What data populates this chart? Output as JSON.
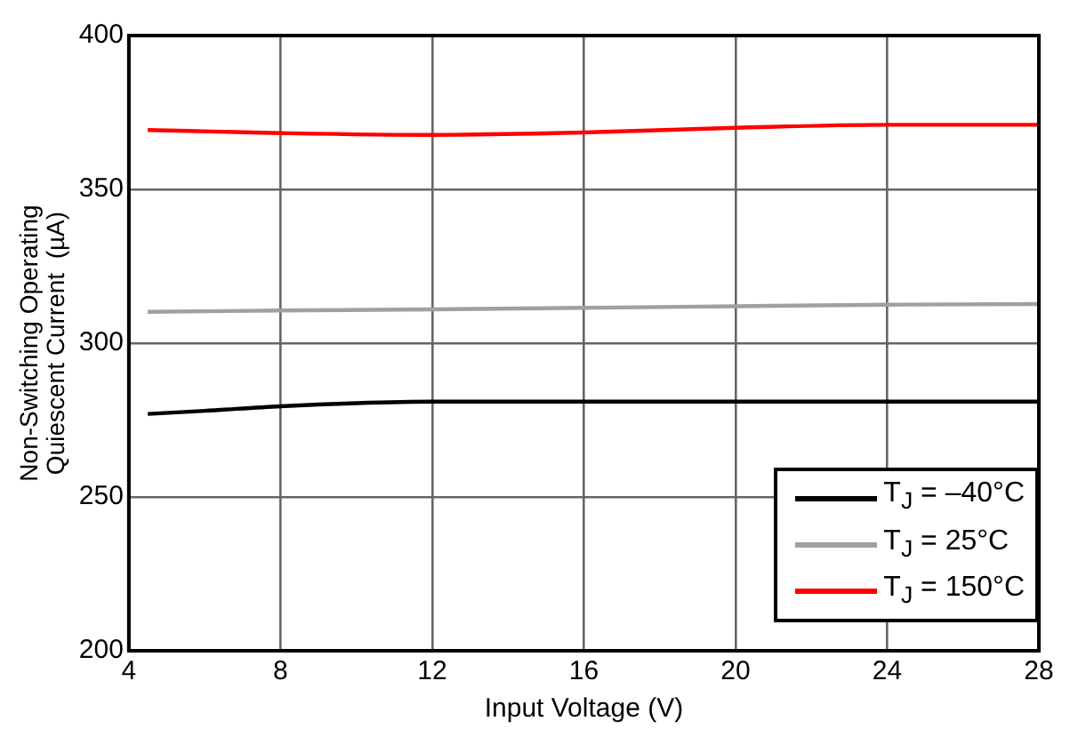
{
  "chart_data": {
    "type": "line",
    "xlabel": "Input Voltage (V)",
    "ylabel": "Non-Switching Operating\nQuiescent Current  (µA)",
    "xlim": [
      4,
      28
    ],
    "xticks": [
      4,
      8,
      12,
      16,
      20,
      24,
      28
    ],
    "ylim": [
      200,
      400
    ],
    "yticks": [
      200,
      250,
      300,
      350,
      400
    ],
    "grid": true,
    "legend": "bottom right",
    "marker": "none",
    "line_style": "solid",
    "series": [
      {
        "name": "T$_{J}$ = –40°C",
        "color": "#000000",
        "x": [
          4.5,
          6,
          8,
          10,
          12,
          16,
          20,
          24,
          28
        ],
        "values": [
          277,
          278,
          279.5,
          280.5,
          281,
          281,
          281,
          281,
          281
        ]
      },
      {
        "name": "T$_{J}$ = 25°C",
        "color": "#a0a0a0",
        "x": [
          4.5,
          8,
          12,
          16,
          20,
          24,
          28
        ],
        "values": [
          310.2,
          310.6,
          311,
          311.5,
          312,
          312.5,
          312.7
        ]
      },
      {
        "name": "T$_{J}$ = 150°C",
        "color": "#ff0000",
        "x": [
          4.5,
          8,
          12,
          16,
          20,
          24,
          28
        ],
        "values": [
          369.3,
          368.3,
          367.7,
          368.5,
          370,
          371,
          371
        ]
      }
    ]
  }
}
